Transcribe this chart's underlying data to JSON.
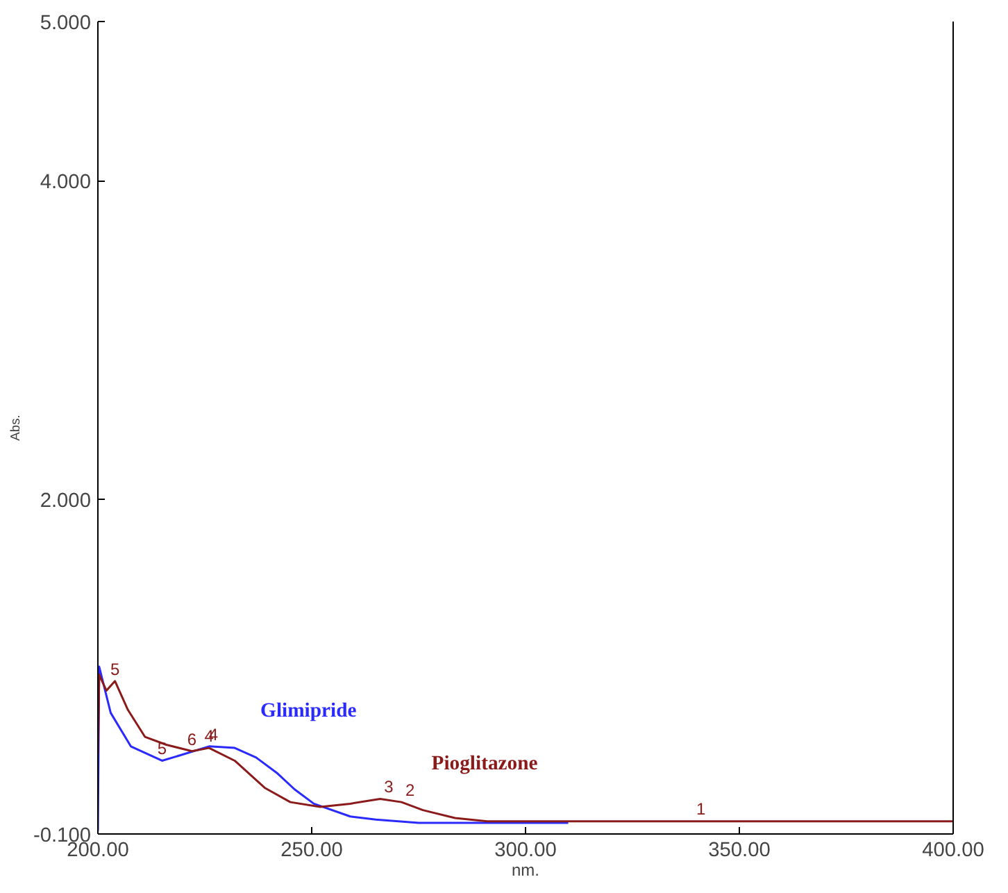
{
  "chart_data": {
    "type": "line",
    "xlabel": "nm.",
    "ylabel": "Abs.",
    "xlim": [
      200,
      400
    ],
    "ylim": [
      -0.1,
      5
    ],
    "xticks": [
      {
        "value": 200,
        "label": "200.00"
      },
      {
        "value": 250,
        "label": "250.00"
      },
      {
        "value": 300,
        "label": "300.00"
      },
      {
        "value": 350,
        "label": "350.00"
      },
      {
        "value": 400,
        "label": "400.00"
      }
    ],
    "yticks": [
      {
        "value": -0.1,
        "label": "-0.100"
      },
      {
        "value": 2,
        "label": "2.000"
      },
      {
        "value": 4,
        "label": "4.000"
      },
      {
        "value": 5,
        "label": "5.000"
      }
    ],
    "grid": false,
    "series": [
      {
        "name": "Glimipride",
        "color": "#2a2aff",
        "x": [
          200,
          200.3,
          203,
          207.7,
          215,
          220,
          226,
          232,
          237,
          242,
          246,
          250.5,
          259,
          265,
          275,
          290,
          310
        ],
        "values": [
          -0.08,
          0.95,
          0.66,
          0.45,
          0.36,
          0.4,
          0.45,
          0.44,
          0.38,
          0.28,
          0.18,
          0.09,
          0.01,
          -0.01,
          -0.03,
          -0.03,
          -0.03
        ]
      },
      {
        "name": "Pioglitazone",
        "color": "#8b1a1a",
        "x": [
          200,
          200.3,
          202,
          204,
          207,
          211,
          216,
          222,
          226,
          232,
          239,
          245,
          252,
          259,
          266,
          271,
          276,
          283.5,
          291,
          310,
          350,
          400
        ],
        "values": [
          0.4,
          0.9,
          0.8,
          0.86,
          0.68,
          0.51,
          0.46,
          0.42,
          0.44,
          0.36,
          0.19,
          0.1,
          0.07,
          0.09,
          0.12,
          0.1,
          0.05,
          0.0,
          -0.02,
          -0.02,
          -0.02,
          -0.02
        ]
      }
    ],
    "annotations": [
      {
        "text": "5",
        "x": 204,
        "y": 0.86
      },
      {
        "text": "4",
        "x": 226,
        "y": 0.44
      },
      {
        "text": "6",
        "x": 222,
        "y": 0.42
      },
      {
        "text": "3",
        "x": 268,
        "y": 0.12
      },
      {
        "text": "2",
        "x": 273,
        "y": 0.1
      },
      {
        "text": "1",
        "x": 341,
        "y": -0.02
      },
      {
        "text": "5",
        "x": 215,
        "y": 0.36
      },
      {
        "text": "4",
        "x": 227,
        "y": 0.45
      }
    ]
  }
}
